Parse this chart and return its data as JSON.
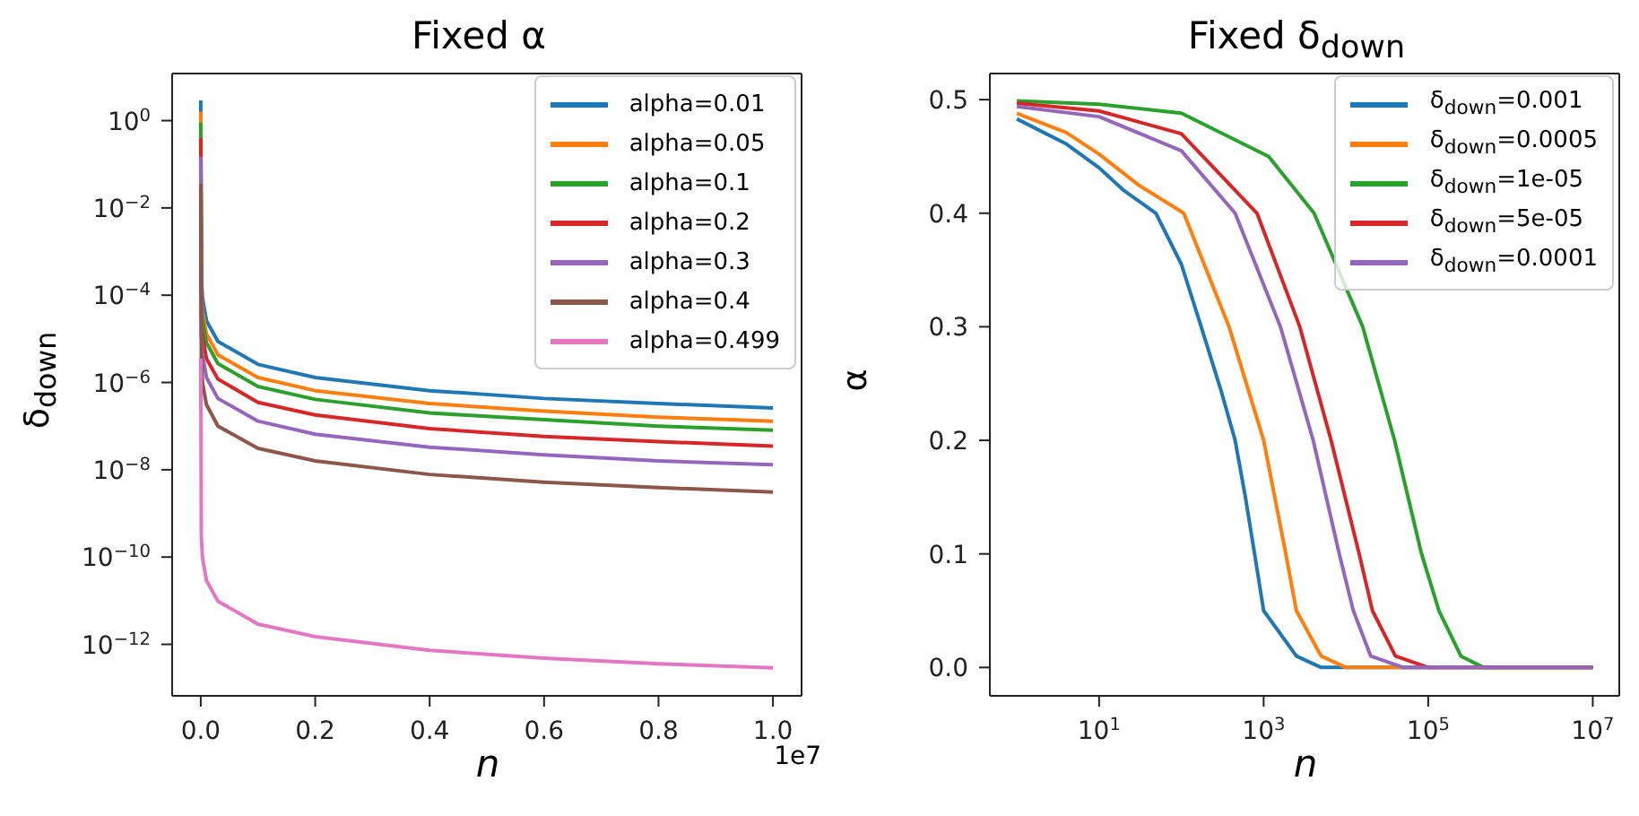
{
  "chart_data": [
    {
      "type": "line",
      "title": "Fixed α",
      "xlabel": "n",
      "ylabel": "δ$_{down}$",
      "log": "y",
      "legend": "top right",
      "marker": "none",
      "annotations": [
        "1e7"
      ],
      "x": [
        1e-07,
        0.001,
        0.003,
        0.01,
        0.03,
        0.1,
        0.2,
        0.4,
        0.6,
        0.8,
        1
      ],
      "xlim": [
        -0.05,
        1.05
      ],
      "xticks": [
        {
          "value": 0,
          "label": "0.0"
        },
        0.2,
        0.4,
        0.6,
        0.8,
        {
          "value": 1,
          "label": "1.0"
        }
      ],
      "ylim": [
        6.6e-14,
        12
      ],
      "yticks": [
        {
          "value": 1,
          "label": "10$^{0}$"
        },
        {
          "value": 0.01,
          "label": "10$^{−2}$"
        },
        {
          "value": 0.0001,
          "label": "10$^{−4}$"
        },
        {
          "value": 1e-06,
          "label": "10$^{−6}$"
        },
        {
          "value": 1e-08,
          "label": "10$^{−8}$"
        },
        {
          "value": 1e-10,
          "label": "10$^{−10}$"
        },
        {
          "value": 1e-12,
          "label": "10$^{−12}$"
        }
      ],
      "series": [
        {
          "name": "alpha=0.01",
          "color": "#1f77b4",
          "values": [
            2.9,
            0.00026,
            8.7e-05,
            2.6e-05,
            8.7e-06,
            2.6e-06,
            1.3e-06,
            6.5e-07,
            4.3e-07,
            3.3e-07,
            2.6e-07
          ]
        },
        {
          "name": "alpha=0.05",
          "color": "#ff7f0e",
          "values": [
            1.6,
            0.00013,
            4.3e-05,
            1.3e-05,
            4.3e-06,
            1.3e-06,
            6.5e-07,
            3.3e-07,
            2.2e-07,
            1.6e-07,
            1.3e-07
          ]
        },
        {
          "name": "alpha=0.1",
          "color": "#2ca02c",
          "values": [
            0.9,
            8.1e-05,
            2.7e-05,
            8.1e-06,
            2.7e-06,
            8.1e-07,
            4.1e-07,
            2e-07,
            1.4e-07,
            1e-07,
            8.1e-08
          ]
        },
        {
          "name": "alpha=0.2",
          "color": "#d62728",
          "values": [
            0.4,
            3.5e-05,
            1.2e-05,
            3.5e-06,
            1.2e-06,
            3.5e-07,
            1.8e-07,
            8.8e-08,
            5.8e-08,
            4.4e-08,
            3.5e-08
          ]
        },
        {
          "name": "alpha=0.3",
          "color": "#9467bd",
          "values": [
            0.15,
            1.3e-05,
            4.3e-06,
            1.3e-06,
            4.3e-07,
            1.3e-07,
            6.5e-08,
            3.3e-08,
            2.2e-08,
            1.6e-08,
            1.3e-08
          ]
        },
        {
          "name": "alpha=0.4",
          "color": "#8c564b",
          "values": [
            0.036,
            3.1e-06,
            1e-06,
            3.1e-07,
            1e-07,
            3.1e-08,
            1.6e-08,
            7.8e-09,
            5.2e-09,
            3.9e-09,
            3.1e-09
          ]
        },
        {
          "name": "alpha=0.499",
          "color": "#e377c2",
          "values": [
            3.5e-06,
            2.9e-10,
            9.7e-11,
            2.9e-11,
            9.7e-12,
            2.9e-12,
            1.5e-12,
            7.3e-13,
            4.8e-13,
            3.6e-13,
            2.9e-13
          ]
        }
      ]
    },
    {
      "type": "line",
      "title": "Fixed δ$_{down}$",
      "xlabel": "n",
      "ylabel": "α",
      "log": "x",
      "legend": "top right",
      "marker": "none",
      "xlim": [
        0.47,
        21000000
      ],
      "xticks": [
        {
          "value": 10,
          "label": "10$^{1}$"
        },
        {
          "value": 1000,
          "label": "10$^{3}$"
        },
        {
          "value": 100000,
          "label": "10$^{5}$"
        },
        {
          "value": 10000000,
          "label": "10$^{7}$"
        }
      ],
      "ylim": [
        -0.025,
        0.523
      ],
      "yticks": [
        {
          "value": 0,
          "label": "0.0"
        },
        {
          "value": 0.1,
          "label": "0.1"
        },
        {
          "value": 0.2,
          "label": "0.2"
        },
        {
          "value": 0.3,
          "label": "0.3"
        },
        {
          "value": 0.4,
          "label": "0.4"
        },
        {
          "value": 0.5,
          "label": "0.5"
        }
      ],
      "series": [
        {
          "name": "δ$_{down}$=0.001",
          "color": "#1f77b4",
          "x": [
            1,
            4,
            10,
            20,
            49,
            100,
            174,
            300,
            450,
            600,
            776,
            1000,
            2500,
            5000,
            10000000
          ],
          "values": [
            0.483,
            0.461,
            0.44,
            0.42,
            0.4,
            0.355,
            0.3,
            0.245,
            0.2,
            0.15,
            0.1,
            0.05,
            0.01,
            0,
            0
          ]
        },
        {
          "name": "δ$_{down}$=0.0005",
          "color": "#ff7f0e",
          "x": [
            1,
            4,
            10,
            30,
            107,
            380,
            1000,
            1860,
            2500,
            5000,
            10000,
            10000000
          ],
          "values": [
            0.488,
            0.471,
            0.452,
            0.425,
            0.4,
            0.3,
            0.2,
            0.1,
            0.05,
            0.01,
            0,
            0
          ]
        },
        {
          "name": "δ$_{down}$=1e-05",
          "color": "#2ca02c",
          "x": [
            1,
            10,
            100,
            1150,
            4100,
            16000,
            39000,
            83000,
            135000,
            250000,
            470000,
            10000000
          ],
          "values": [
            0.499,
            0.496,
            0.488,
            0.45,
            0.4,
            0.3,
            0.2,
            0.1,
            0.05,
            0.01,
            0,
            0
          ]
        },
        {
          "name": "δ$_{down}$=5e-05",
          "color": "#d62728",
          "x": [
            1,
            10,
            100,
            830,
            2750,
            6600,
            14500,
            21000,
            40000,
            100000,
            10000000
          ],
          "values": [
            0.497,
            0.49,
            0.47,
            0.4,
            0.3,
            0.2,
            0.1,
            0.05,
            0.01,
            0,
            0
          ]
        },
        {
          "name": "δ$_{down}$=0.0001",
          "color": "#9467bd",
          "x": [
            1,
            10,
            100,
            450,
            1600,
            4000,
            8300,
            12300,
            20000,
            50000,
            10000000
          ],
          "values": [
            0.494,
            0.485,
            0.455,
            0.4,
            0.3,
            0.2,
            0.1,
            0.05,
            0.01,
            0,
            0
          ]
        }
      ]
    }
  ]
}
